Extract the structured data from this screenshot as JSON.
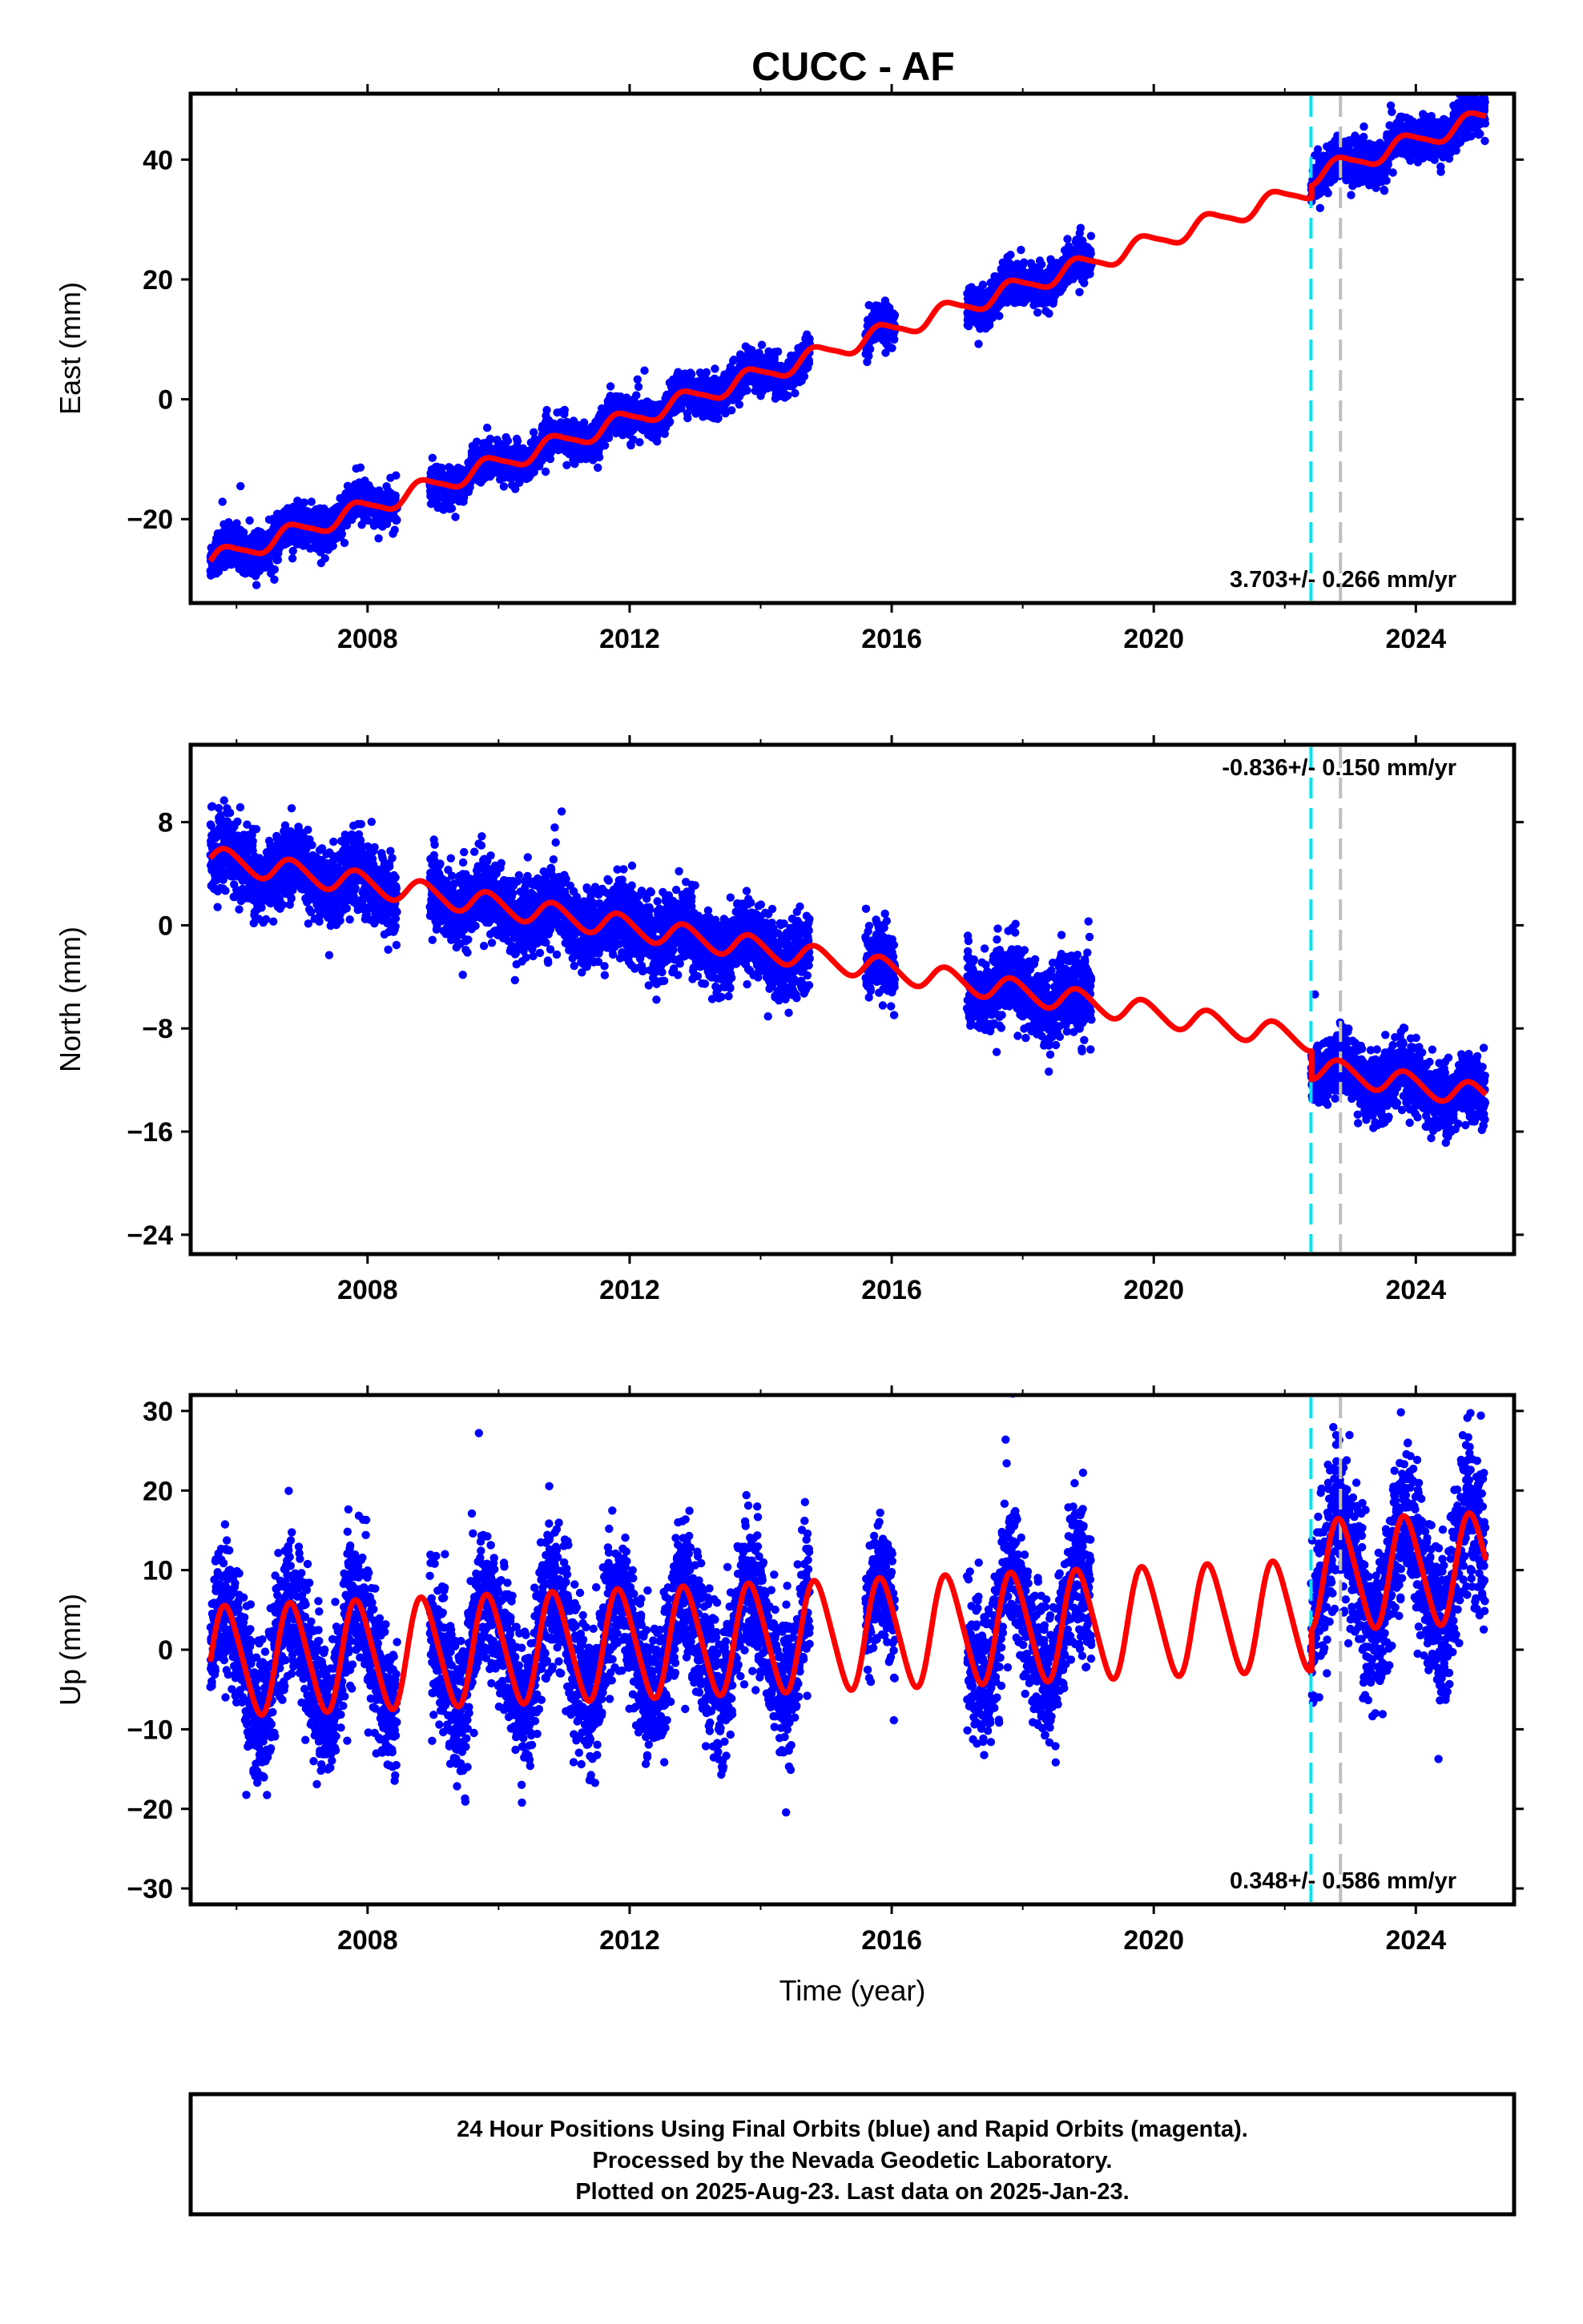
{
  "title": "CUCC - AF",
  "colors": {
    "data": "#0000ff",
    "model": "#ff0000",
    "equipment_change": "#00e5ee",
    "other_event": "#bfbfbf",
    "frame": "#000000"
  },
  "footer": {
    "line1": "24 Hour Positions Using Final Orbits (blue) and Rapid Orbits (magenta).",
    "line2": "Processed by the Nevada Geodetic Laboratory.",
    "line3": "Plotted on 2025-Aug-23. Last data on 2025-Jan-23."
  },
  "chart_data": [
    {
      "type": "scatter",
      "panel": "east",
      "ylabel": "East (mm)",
      "xlabel": "",
      "xlim": [
        2005.3,
        2025.5
      ],
      "ylim": [
        -34,
        51
      ],
      "xticks": [
        2008,
        2012,
        2016,
        2020,
        2024
      ],
      "xtick_labels": [
        "2008",
        "2012",
        "2016",
        "2020",
        "2024"
      ],
      "yticks": [
        -20,
        0,
        20,
        40
      ],
      "ytick_labels": [
        "−20",
        "0",
        "20",
        "40"
      ],
      "rate_label": "3.703+/- 0.266 mm/yr",
      "rate_position": "bottom-right",
      "event_lines": [
        {
          "x": 2022.4,
          "color": "cyan",
          "style": "dashed"
        },
        {
          "x": 2022.85,
          "color": "gray",
          "style": "dashed"
        }
      ],
      "model": {
        "velocity_mm_yr": 3.703,
        "ref_year": 2005.6,
        "intercept_mm": -27.0,
        "annual_amp_mm": 1.5,
        "semiannual_amp_mm": 0.3,
        "steps": [
          {
            "x": 2022.4,
            "offset_mm": 2.0
          }
        ]
      },
      "data_segments": [
        {
          "start": 2005.6,
          "end": 2008.45,
          "scatter_mm": 1.6
        },
        {
          "start": 2008.95,
          "end": 2014.75,
          "scatter_mm": 1.6
        },
        {
          "start": 2015.6,
          "end": 2016.05,
          "scatter_mm": 1.8
        },
        {
          "start": 2017.15,
          "end": 2019.05,
          "scatter_mm": 1.7
        },
        {
          "start": 2022.4,
          "end": 2025.06,
          "scatter_mm": 1.8
        }
      ]
    },
    {
      "type": "scatter",
      "panel": "north",
      "ylabel": "North (mm)",
      "xlabel": "",
      "xlim": [
        2005.3,
        2025.5
      ],
      "ylim": [
        -25.5,
        14
      ],
      "xticks": [
        2008,
        2012,
        2016,
        2020,
        2024
      ],
      "xtick_labels": [
        "2008",
        "2012",
        "2016",
        "2020",
        "2024"
      ],
      "yticks": [
        -24,
        -16,
        -8,
        0,
        8
      ],
      "ytick_labels": [
        "−24",
        "−16",
        "−8",
        "0",
        "8"
      ],
      "rate_label": "-0.836+/- 0.150 mm/yr",
      "rate_position": "top-right",
      "event_lines": [
        {
          "x": 2022.4,
          "color": "cyan",
          "style": "dashed"
        },
        {
          "x": 2022.85,
          "color": "gray",
          "style": "dashed"
        }
      ],
      "model": {
        "velocity_mm_yr": -0.836,
        "ref_year": 2005.6,
        "intercept_mm": 5.2,
        "annual_amp_mm": 0.9,
        "semiannual_amp_mm": 0.1,
        "steps": [
          {
            "x": 2022.4,
            "offset_mm": -2.2
          }
        ]
      },
      "data_segments": [
        {
          "start": 2005.6,
          "end": 2008.45,
          "scatter_mm": 1.5
        },
        {
          "start": 2008.95,
          "end": 2014.75,
          "scatter_mm": 1.5
        },
        {
          "start": 2015.6,
          "end": 2016.05,
          "scatter_mm": 1.4
        },
        {
          "start": 2017.15,
          "end": 2019.05,
          "scatter_mm": 1.5
        },
        {
          "start": 2022.4,
          "end": 2025.06,
          "scatter_mm": 1.3
        }
      ]
    },
    {
      "type": "scatter",
      "panel": "up",
      "ylabel": "Up (mm)",
      "xlabel": "Time (year)",
      "xlim": [
        2005.3,
        2025.5
      ],
      "ylim": [
        -32,
        32
      ],
      "xticks": [
        2008,
        2012,
        2016,
        2020,
        2024
      ],
      "xtick_labels": [
        "2008",
        "2012",
        "2016",
        "2020",
        "2024"
      ],
      "yticks": [
        -30,
        -20,
        -10,
        0,
        10,
        20,
        30
      ],
      "ytick_labels": [
        "−30",
        "−20",
        "−10",
        "0",
        "10",
        "20",
        "30"
      ],
      "rate_label": "0.348+/- 0.586 mm/yr",
      "rate_position": "bottom-right",
      "event_lines": [
        {
          "x": 2022.4,
          "color": "cyan",
          "style": "dashed"
        },
        {
          "x": 2022.85,
          "color": "gray",
          "style": "dashed"
        }
      ],
      "model": {
        "velocity_mm_yr": 0.348,
        "ref_year": 2005.6,
        "intercept_mm": -1.5,
        "annual_amp_mm": 6.8,
        "semiannual_amp_mm": 0.8,
        "steps": [
          {
            "x": 2022.4,
            "offset_mm": 5.0
          }
        ]
      },
      "data_segments": [
        {
          "start": 2005.6,
          "end": 2008.45,
          "scatter_mm": 4.5
        },
        {
          "start": 2008.95,
          "end": 2014.75,
          "scatter_mm": 4.5
        },
        {
          "start": 2015.6,
          "end": 2016.05,
          "scatter_mm": 4.0
        },
        {
          "start": 2017.15,
          "end": 2019.05,
          "scatter_mm": 4.5
        },
        {
          "start": 2022.4,
          "end": 2025.06,
          "scatter_mm": 5.0
        }
      ]
    }
  ]
}
